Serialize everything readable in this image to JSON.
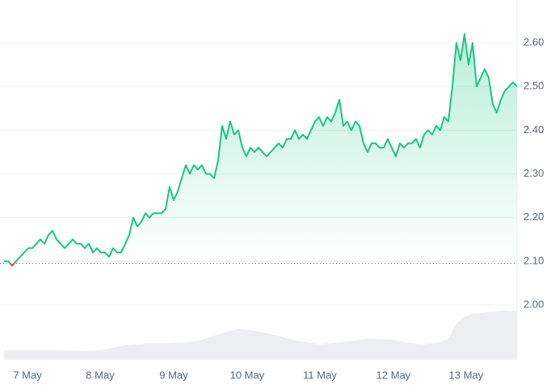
{
  "chart_data": {
    "type": "line",
    "values": [
      2.1,
      2.1,
      2.09,
      2.1,
      2.11,
      2.12,
      2.13,
      2.13,
      2.14,
      2.15,
      2.14,
      2.16,
      2.17,
      2.15,
      2.14,
      2.13,
      2.14,
      2.15,
      2.14,
      2.14,
      2.13,
      2.14,
      2.12,
      2.13,
      2.12,
      2.12,
      2.11,
      2.13,
      2.12,
      2.12,
      2.14,
      2.16,
      2.2,
      2.18,
      2.19,
      2.21,
      2.2,
      2.21,
      2.21,
      2.21,
      2.22,
      2.27,
      2.24,
      2.26,
      2.29,
      2.32,
      2.3,
      2.32,
      2.31,
      2.32,
      2.3,
      2.3,
      2.29,
      2.33,
      2.41,
      2.38,
      2.42,
      2.39,
      2.4,
      2.36,
      2.34,
      2.36,
      2.35,
      2.36,
      2.35,
      2.34,
      2.35,
      2.36,
      2.37,
      2.36,
      2.38,
      2.38,
      2.4,
      2.38,
      2.39,
      2.38,
      2.4,
      2.42,
      2.43,
      2.41,
      2.43,
      2.42,
      2.44,
      2.47,
      2.41,
      2.42,
      2.4,
      2.42,
      2.41,
      2.37,
      2.35,
      2.37,
      2.37,
      2.36,
      2.36,
      2.38,
      2.36,
      2.34,
      2.37,
      2.36,
      2.37,
      2.37,
      2.38,
      2.36,
      2.39,
      2.4,
      2.39,
      2.41,
      2.4,
      2.43,
      2.42,
      2.5,
      2.6,
      2.56,
      2.62,
      2.55,
      2.6,
      2.5,
      2.52,
      2.54,
      2.52,
      2.46,
      2.44,
      2.47,
      2.49,
      2.5,
      2.51,
      2.5
    ],
    "color": "#16c784",
    "down_color": "#ea3943",
    "baseline": 2.095,
    "xlim": [
      0,
      127
    ],
    "xticks": [
      {
        "value": 5.8,
        "label": "7 May"
      },
      {
        "value": 23.8,
        "label": "8 May"
      },
      {
        "value": 42,
        "label": "9 May"
      },
      {
        "value": 60.2,
        "label": "10 May"
      },
      {
        "value": 78.2,
        "label": "11 May"
      },
      {
        "value": 96.4,
        "label": "12 May"
      },
      {
        "value": 114.4,
        "label": "13 May"
      }
    ],
    "ylim": [
      1.88,
      2.7
    ],
    "yticks": [
      {
        "value": 2,
        "label": "2.00"
      },
      {
        "value": 2.1,
        "label": "2.10"
      },
      {
        "value": 2.2,
        "label": "2.20"
      },
      {
        "value": 2.3,
        "label": "2.30"
      },
      {
        "value": 2.4,
        "label": "2.40"
      },
      {
        "value": 2.5,
        "label": "2.50"
      },
      {
        "value": 2.6,
        "label": "2.60"
      }
    ],
    "grid": true,
    "volume": {
      "color": "#eceef1",
      "lim": [
        0,
        100
      ],
      "x": [
        0,
        12,
        20,
        24,
        30,
        36,
        42,
        48,
        54,
        58,
        62,
        66,
        72,
        78,
        84,
        90,
        96,
        100,
        104,
        108,
        110,
        112,
        114,
        116,
        120,
        124,
        127
      ],
      "values": [
        12,
        12,
        11,
        12,
        18,
        20,
        21,
        23,
        33,
        38,
        36,
        32,
        24,
        19,
        22,
        26,
        25,
        21,
        19,
        22,
        26,
        45,
        53,
        57,
        59,
        61,
        60
      ]
    }
  }
}
